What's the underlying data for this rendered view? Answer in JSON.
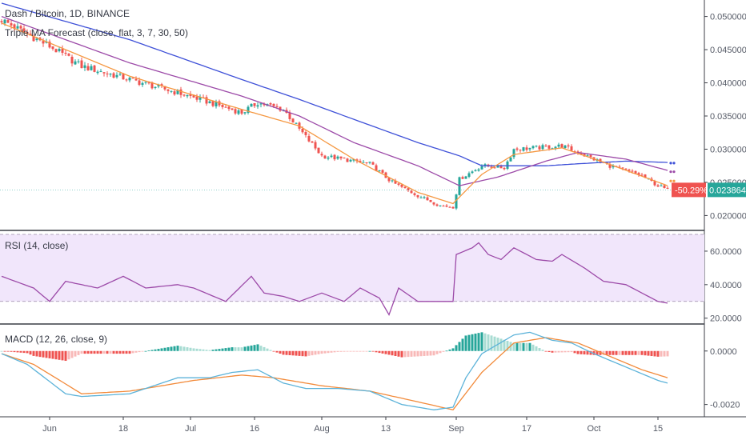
{
  "header": {
    "title": "Dash / Bitcoin, 1D, BINANCE",
    "indicator_legend": "Triple MA Forecast (close, flat, 3, 7, 30, 50)"
  },
  "colors": {
    "up_candle": "#26a69a",
    "down_candle": "#ef5350",
    "ma_fast": "#f59842",
    "ma_mid": "#9c4aa8",
    "ma_slow": "#3f51d8",
    "rsi_line": "#9c4aa8",
    "rsi_band": "#f1e6fb",
    "macd_line": "#5db3d9",
    "signal_line": "#f28a3a",
    "hist_up_strong": "#26a69a",
    "hist_up_weak": "#a8dcd3",
    "hist_down_strong": "#ef5350",
    "hist_down_weak": "#f8b9b8"
  },
  "chart_data": [
    {
      "type": "candlestick",
      "name": "price",
      "ylim": [
        0.018,
        0.052
      ],
      "yticks": [
        "0.050000",
        "0.045000",
        "0.040000",
        "0.035000",
        "0.030000",
        "0.025000",
        "0.020000"
      ],
      "ytick_values": [
        0.05,
        0.045,
        0.04,
        0.035,
        0.03,
        0.025,
        0.02
      ],
      "last_price": 0.023864,
      "last_price_label": "0.023864",
      "change_label": "-50.29%",
      "keypoints_close": [
        [
          0,
          0.0495
        ],
        [
          15,
          0.0455
        ],
        [
          25,
          0.0425
        ],
        [
          40,
          0.0405
        ],
        [
          55,
          0.0385
        ],
        [
          62,
          0.0375
        ],
        [
          75,
          0.0355
        ],
        [
          80,
          0.037
        ],
        [
          88,
          0.036
        ],
        [
          93,
          0.033
        ],
        [
          100,
          0.029
        ],
        [
          115,
          0.0278
        ],
        [
          122,
          0.025
        ],
        [
          130,
          0.023
        ],
        [
          137,
          0.0215
        ],
        [
          141,
          0.0213
        ],
        [
          143,
          0.0255
        ],
        [
          150,
          0.0275
        ],
        [
          157,
          0.0272
        ],
        [
          160,
          0.03
        ],
        [
          167,
          0.0302
        ],
        [
          175,
          0.0305
        ],
        [
          180,
          0.0295
        ],
        [
          190,
          0.0275
        ],
        [
          200,
          0.026
        ],
        [
          205,
          0.0245
        ],
        [
          208,
          0.02386
        ]
      ],
      "ma_fast_keypoints": [
        [
          0,
          0.049
        ],
        [
          40,
          0.041
        ],
        [
          75,
          0.036
        ],
        [
          93,
          0.0335
        ],
        [
          110,
          0.0285
        ],
        [
          130,
          0.0235
        ],
        [
          141,
          0.0218
        ],
        [
          150,
          0.0262
        ],
        [
          160,
          0.0292
        ],
        [
          175,
          0.0302
        ],
        [
          190,
          0.0277
        ],
        [
          208,
          0.0245
        ]
      ],
      "ma_mid_keypoints": [
        [
          0,
          0.05
        ],
        [
          40,
          0.043
        ],
        [
          75,
          0.038
        ],
        [
          93,
          0.035
        ],
        [
          110,
          0.031
        ],
        [
          130,
          0.0275
        ],
        [
          143,
          0.0245
        ],
        [
          155,
          0.0258
        ],
        [
          170,
          0.0282
        ],
        [
          180,
          0.0295
        ],
        [
          195,
          0.0285
        ],
        [
          208,
          0.0268
        ]
      ],
      "ma_slow_keypoints": [
        [
          0,
          0.052
        ],
        [
          40,
          0.0465
        ],
        [
          75,
          0.0405
        ],
        [
          93,
          0.0375
        ],
        [
          110,
          0.0345
        ],
        [
          130,
          0.031
        ],
        [
          143,
          0.029
        ],
        [
          150,
          0.0275
        ],
        [
          170,
          0.0275
        ],
        [
          180,
          0.0278
        ],
        [
          195,
          0.0282
        ],
        [
          208,
          0.028
        ]
      ],
      "forecast_dots": [
        {
          "i": 209,
          "orange": 0.0252,
          "purple": 0.0266,
          "blue": 0.0279
        },
        {
          "i": 210,
          "orange": 0.0252,
          "purple": 0.0266,
          "blue": 0.0279
        }
      ]
    },
    {
      "type": "line",
      "name": "rsi",
      "legend": "RSI (14, close)",
      "ylim": [
        17,
        70
      ],
      "yticks": [
        "60.0000",
        "40.0000",
        "20.0000"
      ],
      "ytick_values": [
        60,
        40,
        20
      ],
      "band": [
        30,
        70
      ],
      "keypoints": [
        [
          0,
          45
        ],
        [
          10,
          38
        ],
        [
          15,
          30
        ],
        [
          20,
          42
        ],
        [
          30,
          38
        ],
        [
          38,
          45
        ],
        [
          45,
          38
        ],
        [
          55,
          40
        ],
        [
          60,
          38
        ],
        [
          70,
          30
        ],
        [
          78,
          45
        ],
        [
          82,
          35
        ],
        [
          88,
          33
        ],
        [
          93,
          30
        ],
        [
          100,
          35
        ],
        [
          107,
          30
        ],
        [
          112,
          38
        ],
        [
          118,
          32
        ],
        [
          121,
          22
        ],
        [
          124,
          38
        ],
        [
          130,
          30
        ],
        [
          137,
          30
        ],
        [
          141,
          30
        ],
        [
          142,
          58
        ],
        [
          147,
          62
        ],
        [
          149,
          65
        ],
        [
          152,
          58
        ],
        [
          156,
          55
        ],
        [
          160,
          62
        ],
        [
          167,
          55
        ],
        [
          172,
          54
        ],
        [
          175,
          58
        ],
        [
          182,
          50
        ],
        [
          188,
          42
        ],
        [
          195,
          40
        ],
        [
          200,
          35
        ],
        [
          205,
          30
        ],
        [
          208,
          29
        ]
      ]
    },
    {
      "type": "bar",
      "name": "macd",
      "legend": "MACD (12, 26, close, 9)",
      "ylim": [
        -0.0024,
        0.00095
      ],
      "yticks": [
        "0.0000",
        "-0.0020"
      ],
      "ytick_values": [
        0,
        -0.002
      ],
      "macd_keypoints": [
        [
          0,
          -0.0001
        ],
        [
          8,
          -0.0005
        ],
        [
          20,
          -0.0016
        ],
        [
          25,
          -0.0017
        ],
        [
          40,
          -0.0016
        ],
        [
          55,
          -0.001
        ],
        [
          65,
          -0.001
        ],
        [
          72,
          -0.0008
        ],
        [
          80,
          -0.0007
        ],
        [
          88,
          -0.0012
        ],
        [
          95,
          -0.0014
        ],
        [
          105,
          -0.0014
        ],
        [
          115,
          -0.0015
        ],
        [
          125,
          -0.002
        ],
        [
          135,
          -0.0022
        ],
        [
          141,
          -0.0021
        ],
        [
          145,
          -0.001
        ],
        [
          150,
          -0.0001
        ],
        [
          160,
          0.0006
        ],
        [
          165,
          0.0007
        ],
        [
          172,
          0.0004
        ],
        [
          178,
          0.0003
        ],
        [
          185,
          -0.0001
        ],
        [
          195,
          -0.0006
        ],
        [
          205,
          -0.0011
        ],
        [
          208,
          -0.0012
        ]
      ],
      "signal_keypoints": [
        [
          0,
          -0.0001
        ],
        [
          10,
          -0.0005
        ],
        [
          25,
          -0.0016
        ],
        [
          40,
          -0.0015
        ],
        [
          60,
          -0.0011
        ],
        [
          75,
          -0.0009
        ],
        [
          85,
          -0.001
        ],
        [
          100,
          -0.0013
        ],
        [
          115,
          -0.0015
        ],
        [
          130,
          -0.0019
        ],
        [
          141,
          -0.0022
        ],
        [
          150,
          -0.0008
        ],
        [
          160,
          0.0003
        ],
        [
          170,
          0.0005
        ],
        [
          180,
          0.0003
        ],
        [
          190,
          -0.0002
        ],
        [
          200,
          -0.0007
        ],
        [
          208,
          -0.001
        ]
      ]
    }
  ],
  "x_axis": {
    "labels": [
      "Jun",
      "18",
      "Jul",
      "16",
      "Aug",
      "13",
      "Sep",
      "17",
      "Oct",
      "15"
    ],
    "label_indices": [
      20,
      43,
      64,
      84,
      105,
      125,
      147,
      169,
      190,
      210
    ]
  }
}
